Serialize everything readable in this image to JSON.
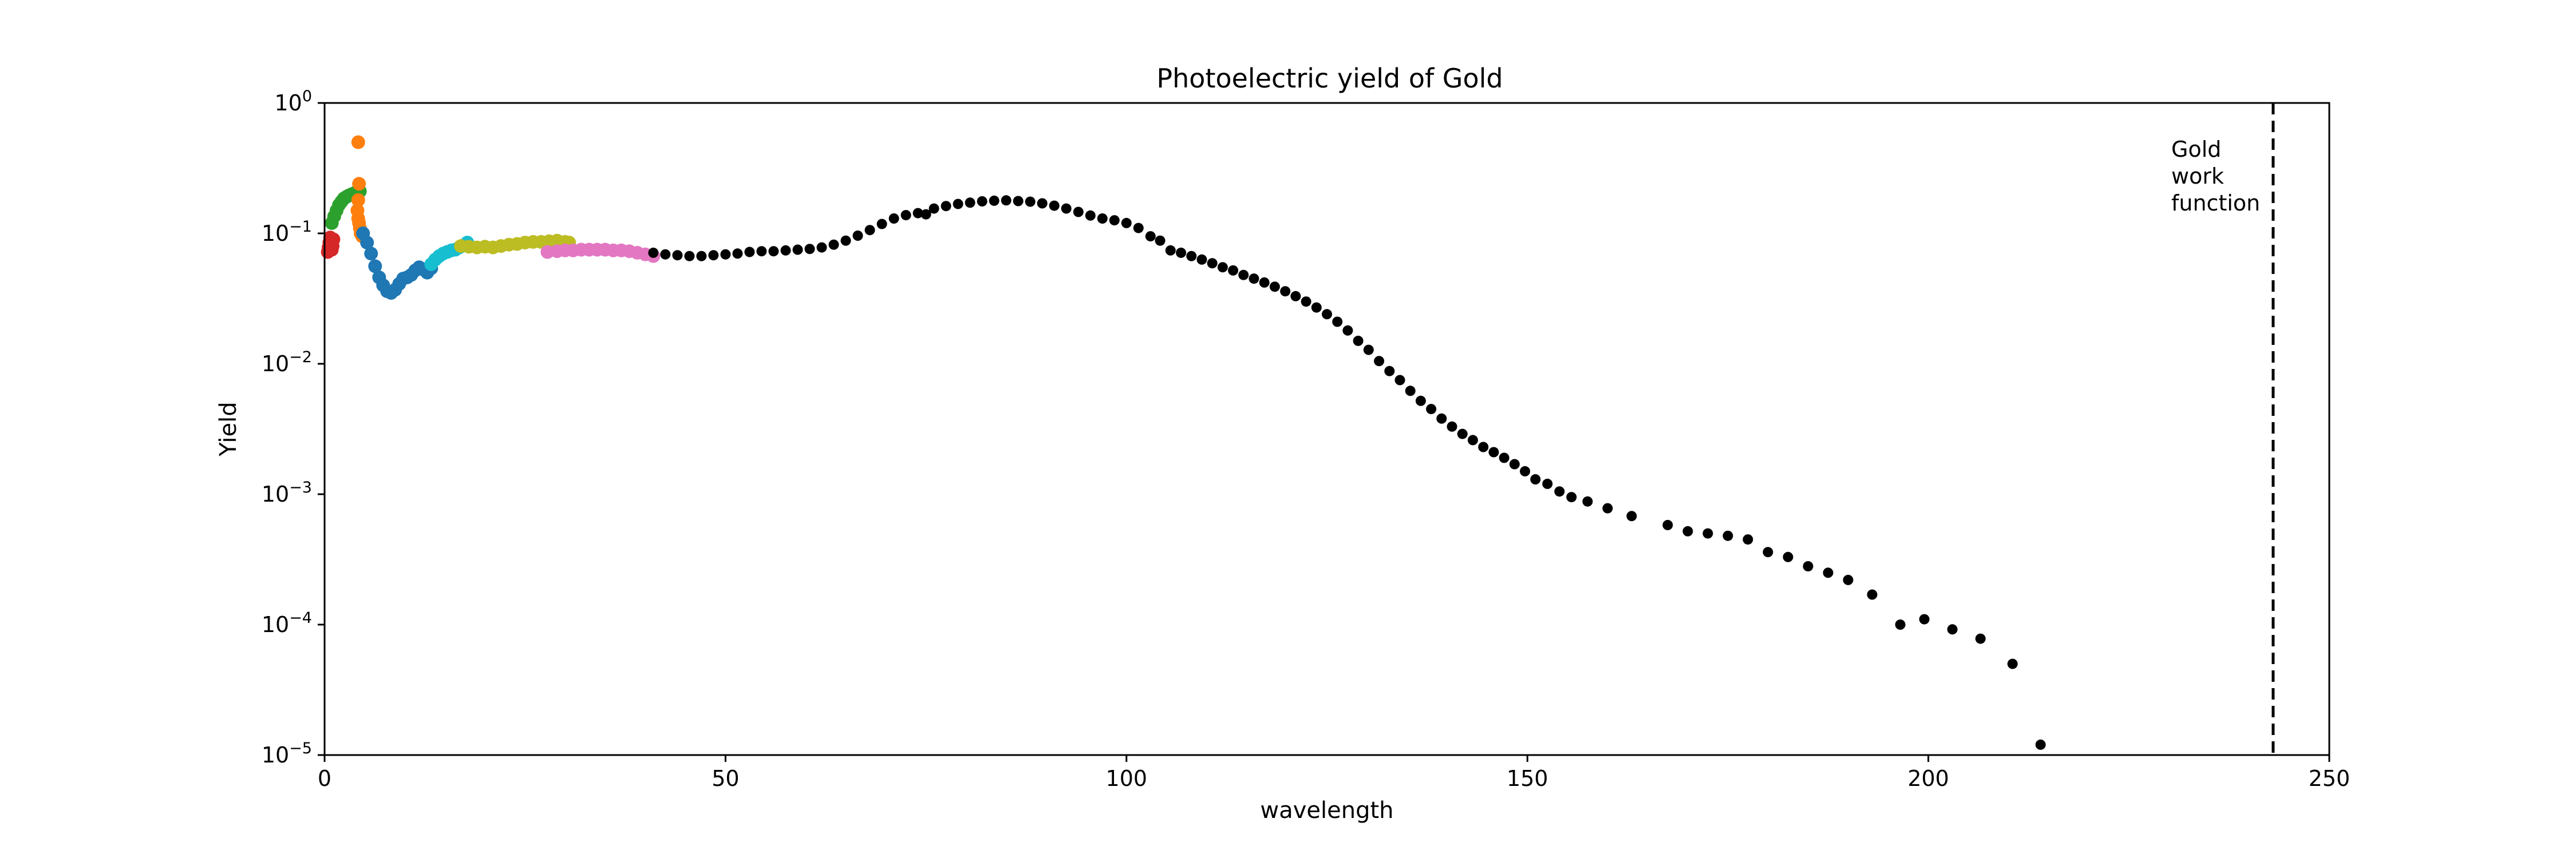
{
  "chart_data": {
    "type": "scatter",
    "title": "Photoelectric yield of Gold",
    "xlabel": "wavelength",
    "ylabel": "Yield",
    "xlim": [
      0,
      250
    ],
    "ylim": [
      1e-05,
      1
    ],
    "yscale": "log",
    "grid": false,
    "xticks": [
      "0",
      "50",
      "100",
      "150",
      "200",
      "250"
    ],
    "yticks": [
      {
        "base": "10",
        "exp": "−5"
      },
      {
        "base": "10",
        "exp": "−4"
      },
      {
        "base": "10",
        "exp": "−3"
      },
      {
        "base": "10",
        "exp": "−2"
      },
      {
        "base": "10",
        "exp": "−1"
      },
      {
        "base": "10",
        "exp": "0"
      }
    ],
    "vline": {
      "x": 243,
      "style": "dashed",
      "color": "#000000"
    },
    "annotation": {
      "lines": [
        "Gold",
        "work",
        "function"
      ]
    },
    "series": [
      {
        "color": "#d62728",
        "points": [
          [
            0.4,
            0.072
          ],
          [
            0.5,
            0.078
          ],
          [
            0.6,
            0.085
          ],
          [
            0.7,
            0.093
          ],
          [
            0.8,
            0.085
          ],
          [
            0.9,
            0.075
          ],
          [
            1.0,
            0.08
          ],
          [
            1.1,
            0.09
          ]
        ]
      },
      {
        "color": "#2ca02c",
        "points": [
          [
            0.9,
            0.12
          ],
          [
            1.2,
            0.135
          ],
          [
            1.5,
            0.15
          ],
          [
            1.8,
            0.165
          ],
          [
            2.1,
            0.175
          ],
          [
            2.4,
            0.185
          ],
          [
            2.7,
            0.19
          ],
          [
            3.0,
            0.195
          ],
          [
            3.4,
            0.2
          ],
          [
            3.8,
            0.205
          ],
          [
            4.1,
            0.21
          ],
          [
            4.4,
            0.21
          ]
        ]
      },
      {
        "color": "#ff7f0e",
        "points": [
          [
            4.2,
            0.5
          ],
          [
            4.3,
            0.24
          ],
          [
            4.2,
            0.18
          ],
          [
            4.1,
            0.15
          ],
          [
            4.2,
            0.13
          ],
          [
            4.3,
            0.12
          ],
          [
            4.4,
            0.11
          ],
          [
            4.5,
            0.1
          ],
          [
            4.7,
            0.095
          ]
        ]
      },
      {
        "color": "#1f77b4",
        "points": [
          [
            4.8,
            0.1
          ],
          [
            5.3,
            0.085
          ],
          [
            5.8,
            0.07
          ],
          [
            6.3,
            0.056
          ],
          [
            6.8,
            0.046
          ],
          [
            7.3,
            0.04
          ],
          [
            7.8,
            0.036
          ],
          [
            8.3,
            0.035
          ],
          [
            8.8,
            0.037
          ],
          [
            9.3,
            0.041
          ],
          [
            9.8,
            0.045
          ],
          [
            10.3,
            0.046
          ],
          [
            10.8,
            0.048
          ],
          [
            11.3,
            0.052
          ],
          [
            11.8,
            0.055
          ],
          [
            12.3,
            0.053
          ],
          [
            12.8,
            0.05
          ],
          [
            13.3,
            0.054
          ]
        ]
      },
      {
        "color": "#17becf",
        "points": [
          [
            13.3,
            0.058
          ],
          [
            13.8,
            0.063
          ],
          [
            14.3,
            0.067
          ],
          [
            14.8,
            0.07
          ],
          [
            15.3,
            0.072
          ],
          [
            15.8,
            0.074
          ],
          [
            16.3,
            0.075
          ],
          [
            16.8,
            0.078
          ],
          [
            17.3,
            0.081
          ],
          [
            17.8,
            0.085
          ]
        ]
      },
      {
        "color": "#bcbd22",
        "points": [
          [
            17.0,
            0.08
          ],
          [
            18.0,
            0.079
          ],
          [
            19.0,
            0.078
          ],
          [
            20.0,
            0.079
          ],
          [
            21.0,
            0.078
          ],
          [
            22.0,
            0.08
          ],
          [
            23.0,
            0.082
          ],
          [
            24.0,
            0.083
          ],
          [
            25.0,
            0.085
          ],
          [
            26.0,
            0.086
          ],
          [
            27.0,
            0.086
          ],
          [
            28.0,
            0.087
          ],
          [
            29.0,
            0.088
          ],
          [
            30.0,
            0.086
          ],
          [
            30.5,
            0.085
          ]
        ]
      },
      {
        "color": "#e377c2",
        "points": [
          [
            27.8,
            0.072
          ],
          [
            29.0,
            0.073
          ],
          [
            30.0,
            0.074
          ],
          [
            31.0,
            0.074
          ],
          [
            32.0,
            0.075
          ],
          [
            33.0,
            0.075
          ],
          [
            34.0,
            0.075
          ],
          [
            35.0,
            0.075
          ],
          [
            36.0,
            0.074
          ],
          [
            37.0,
            0.074
          ],
          [
            38.0,
            0.073
          ],
          [
            39.0,
            0.071
          ],
          [
            40.0,
            0.069
          ],
          [
            41.0,
            0.067
          ]
        ]
      },
      {
        "color": "#000000",
        "points": [
          [
            41.0,
            0.071
          ],
          [
            42.5,
            0.069
          ],
          [
            44.0,
            0.068
          ],
          [
            45.5,
            0.067
          ],
          [
            47.0,
            0.067
          ],
          [
            48.5,
            0.068
          ],
          [
            50.0,
            0.069
          ],
          [
            51.5,
            0.07
          ],
          [
            53.0,
            0.072
          ],
          [
            54.5,
            0.073
          ],
          [
            56.0,
            0.073
          ],
          [
            57.5,
            0.074
          ],
          [
            59.0,
            0.075
          ],
          [
            60.5,
            0.076
          ],
          [
            62.0,
            0.078
          ],
          [
            63.5,
            0.082
          ],
          [
            65.0,
            0.088
          ],
          [
            66.5,
            0.096
          ],
          [
            68.0,
            0.106
          ],
          [
            69.5,
            0.118
          ],
          [
            71.0,
            0.13
          ],
          [
            72.5,
            0.138
          ],
          [
            74.0,
            0.143
          ],
          [
            75.0,
            0.14
          ],
          [
            76.0,
            0.155
          ],
          [
            77.5,
            0.162
          ],
          [
            79.0,
            0.168
          ],
          [
            80.5,
            0.172
          ],
          [
            82.0,
            0.176
          ],
          [
            83.5,
            0.178
          ],
          [
            85.0,
            0.179
          ],
          [
            86.5,
            0.177
          ],
          [
            88.0,
            0.175
          ],
          [
            89.5,
            0.17
          ],
          [
            91.0,
            0.163
          ],
          [
            92.5,
            0.155
          ],
          [
            94.0,
            0.146
          ],
          [
            95.5,
            0.137
          ],
          [
            97.0,
            0.13
          ],
          [
            98.5,
            0.126
          ],
          [
            100.0,
            0.12
          ],
          [
            101.5,
            0.11
          ],
          [
            103.0,
            0.095
          ],
          [
            104.2,
            0.088
          ],
          [
            105.5,
            0.074
          ],
          [
            106.8,
            0.071
          ],
          [
            108.1,
            0.067
          ],
          [
            109.4,
            0.063
          ],
          [
            110.7,
            0.059
          ],
          [
            112.0,
            0.055
          ],
          [
            113.3,
            0.052
          ],
          [
            114.6,
            0.048
          ],
          [
            115.9,
            0.045
          ],
          [
            117.2,
            0.042
          ],
          [
            118.5,
            0.039
          ],
          [
            119.8,
            0.036
          ],
          [
            121.1,
            0.033
          ],
          [
            122.4,
            0.03
          ],
          [
            123.7,
            0.027
          ],
          [
            125.0,
            0.024
          ],
          [
            126.3,
            0.021
          ],
          [
            127.6,
            0.018
          ],
          [
            128.9,
            0.015
          ],
          [
            130.2,
            0.0128
          ],
          [
            131.5,
            0.0105
          ],
          [
            132.8,
            0.0088
          ],
          [
            134.1,
            0.0075
          ],
          [
            135.4,
            0.0062
          ],
          [
            136.7,
            0.0052
          ],
          [
            138.0,
            0.0045
          ],
          [
            139.3,
            0.0038
          ],
          [
            140.6,
            0.0033
          ],
          [
            141.9,
            0.0029
          ],
          [
            143.2,
            0.0026
          ],
          [
            144.5,
            0.0023
          ],
          [
            145.8,
            0.0021
          ],
          [
            147.1,
            0.0019
          ],
          [
            148.4,
            0.0017
          ],
          [
            149.7,
            0.0015
          ],
          [
            151.0,
            0.0013
          ],
          [
            152.5,
            0.0012
          ],
          [
            154.0,
            0.00105
          ],
          [
            155.5,
            0.00095
          ],
          [
            157.5,
            0.00088
          ],
          [
            160.0,
            0.00078
          ],
          [
            163.0,
            0.00068
          ],
          [
            167.5,
            0.00058
          ],
          [
            170.0,
            0.00052
          ],
          [
            172.5,
            0.0005
          ],
          [
            175.0,
            0.00048
          ],
          [
            177.5,
            0.00045
          ],
          [
            180.0,
            0.00036
          ],
          [
            182.5,
            0.00033
          ],
          [
            185.0,
            0.00028
          ],
          [
            187.5,
            0.00025
          ],
          [
            190.0,
            0.00022
          ],
          [
            193.0,
            0.00017
          ],
          [
            196.5,
            0.0001
          ],
          [
            199.5,
            0.00011
          ],
          [
            203.0,
            9.2e-05
          ],
          [
            206.5,
            7.8e-05
          ],
          [
            210.5,
            5e-05
          ],
          [
            214.0,
            1.2e-05
          ]
        ]
      }
    ]
  }
}
